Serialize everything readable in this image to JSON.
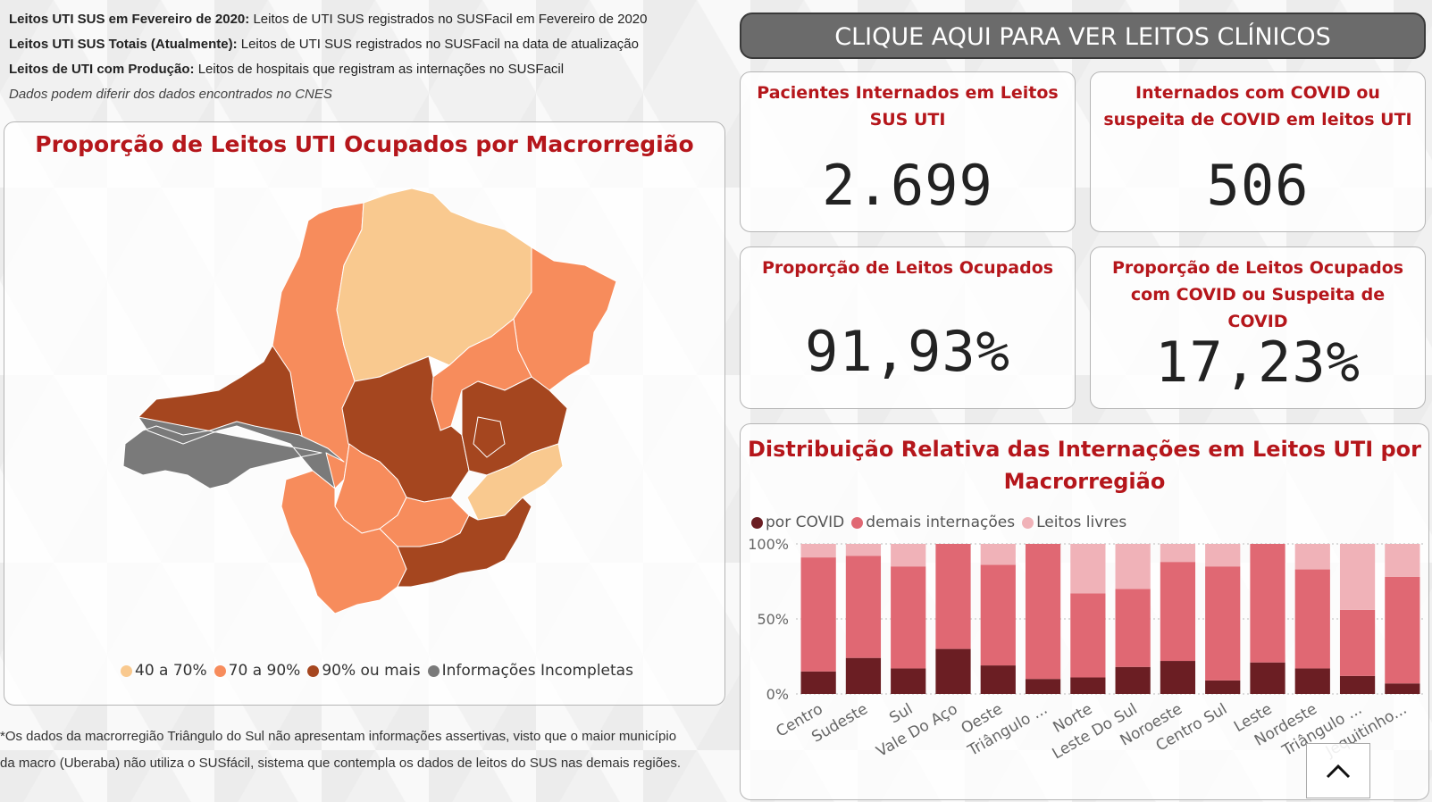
{
  "notes": [
    {
      "bold": "Leitos UTI SUS em Fevereiro de 2020:",
      "text": "  Leitos de UTI SUS registrados no SUSFacil em Fevereiro de 2020"
    },
    {
      "bold": "Leitos UTI SUS Totais (Atualmente):",
      "text": " Leitos de UTI SUS registrados no SUSFacil na data de atualização"
    },
    {
      "bold": "Leitos de UTI com Produção:",
      "text": " Leitos de hospitais que registram as internações no SUSFacil"
    }
  ],
  "notes_italic": "Dados podem diferir dos dados encontrados no CNES",
  "map": {
    "title": "Proporção de Leitos UTI Ocupados por Macrorregião",
    "legend": [
      {
        "label": "40 a 70%",
        "color": "#f9c98f"
      },
      {
        "label": "70 a 90%",
        "color": "#f78c5c"
      },
      {
        "label": "90% ou mais",
        "color": "#a5461f"
      },
      {
        "label": "Informações Incompletas",
        "color": "#7a7a7a"
      }
    ]
  },
  "footnote": {
    "line1": "*Os dados da macrorregião Triângulo do Sul não apresentam informações assertivas, visto que o maior município",
    "line2": "da macro (Uberaba) não utiliza o SUSfácil, sistema que contempla os dados de leitos do SUS nas demais regiões."
  },
  "button_label": "CLIQUE AQUI PARA VER LEITOS CLÍNICOS",
  "cards": [
    {
      "title": "Pacientes Internados em Leitos SUS UTI",
      "value": "2.699"
    },
    {
      "title": "Internados com COVID ou suspeita de COVID em leitos UTI",
      "value": "506"
    },
    {
      "title": "Proporção de Leitos Ocupados",
      "value": "91,93%"
    },
    {
      "title": "Proporção de Leitos Ocupados com COVID ou Suspeita de COVID",
      "value": "17,23%"
    }
  ],
  "chart_data": {
    "type": "bar",
    "stacked": "100%",
    "title": "Distribuição Relativa das Internações em Leitos UTI por Macrorregião",
    "yticks": [
      "100%",
      "50%",
      "0%"
    ],
    "ylim": [
      0,
      100
    ],
    "legend_position": "top-left",
    "categories": [
      "Centro",
      "Sudeste",
      "Sul",
      "Vale Do Aço",
      "Oeste",
      "Triângulo ...",
      "Norte",
      "Leste Do Sul",
      "Noroeste",
      "Centro Sul",
      "Leste",
      "Nordeste",
      "Triângulo ...",
      "Jequitinho..."
    ],
    "series": [
      {
        "name": "por COVID",
        "color": "#6b1e23",
        "values": [
          15,
          24,
          17,
          30,
          19,
          10,
          11,
          18,
          22,
          9,
          21,
          17,
          12,
          7
        ]
      },
      {
        "name": "demais internações",
        "color": "#e06873",
        "values": [
          76,
          68,
          68,
          70,
          67,
          90,
          56,
          52,
          66,
          76,
          79,
          66,
          44,
          71
        ]
      },
      {
        "name": "Leitos livres",
        "color": "#f0b2b8",
        "values": [
          9,
          8,
          15,
          0,
          14,
          0,
          33,
          30,
          12,
          15,
          0,
          17,
          44,
          22
        ]
      }
    ]
  }
}
